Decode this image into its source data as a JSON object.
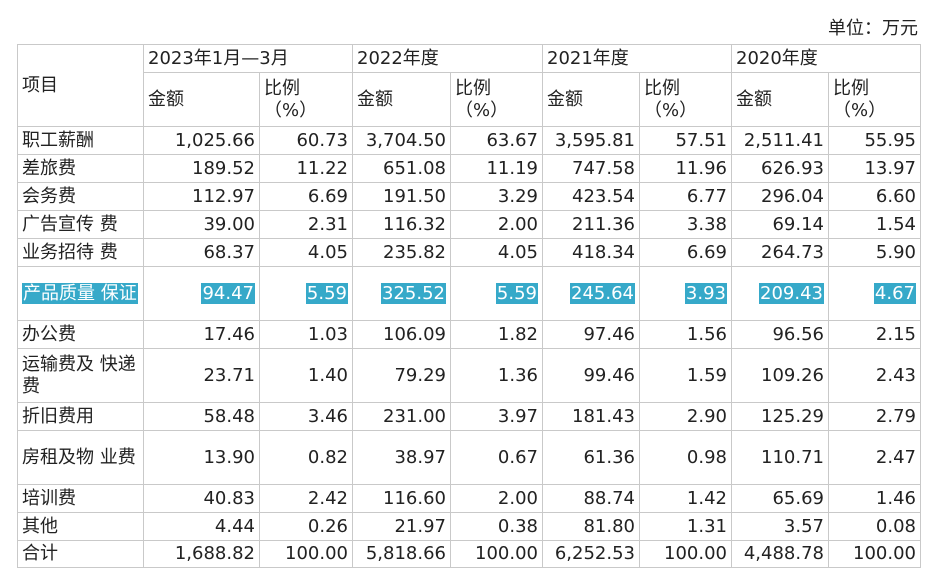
{
  "unit_label": "单位：万元",
  "headers": {
    "item": "项目",
    "periods": [
      "2023年1月—3月",
      "2022年度",
      "2021年度",
      "2020年度"
    ],
    "amount": "金额",
    "ratio_line1": "比例",
    "ratio_line2": "（%）"
  },
  "rows": [
    {
      "name": "职工薪酬",
      "values": [
        "1,025.66",
        "60.73",
        "3,704.50",
        "63.67",
        "3,595.81",
        "57.51",
        "2,511.41",
        "55.95"
      ]
    },
    {
      "name": "差旅费",
      "values": [
        "189.52",
        "11.22",
        "651.08",
        "11.19",
        "747.58",
        "11.96",
        "626.93",
        "13.97"
      ]
    },
    {
      "name": "会务费",
      "values": [
        "112.97",
        "6.69",
        "191.50",
        "3.29",
        "423.54",
        "6.77",
        "296.04",
        "6.60"
      ]
    },
    {
      "name": "广告宣传 费",
      "values": [
        "39.00",
        "2.31",
        "116.32",
        "2.00",
        "211.36",
        "3.38",
        "69.14",
        "1.54"
      ]
    },
    {
      "name": "业务招待 费",
      "values": [
        "68.37",
        "4.05",
        "235.82",
        "4.05",
        "418.34",
        "6.69",
        "264.73",
        "5.90"
      ]
    },
    {
      "name": "产品质量 保证",
      "values": [
        "94.47",
        "5.59",
        "325.52",
        "5.59",
        "245.64",
        "3.93",
        "209.43",
        "4.67"
      ],
      "highlight": true
    },
    {
      "name": "办公费",
      "values": [
        "17.46",
        "1.03",
        "106.09",
        "1.82",
        "97.46",
        "1.56",
        "96.56",
        "2.15"
      ]
    },
    {
      "name": "运输费及 快递费",
      "values": [
        "23.71",
        "1.40",
        "79.29",
        "1.36",
        "99.46",
        "1.59",
        "109.26",
        "2.43"
      ]
    },
    {
      "name": "折旧费用",
      "values": [
        "58.48",
        "3.46",
        "231.00",
        "3.97",
        "181.43",
        "2.90",
        "125.29",
        "2.79"
      ]
    },
    {
      "name": "房租及物 业费",
      "values": [
        "13.90",
        "0.82",
        "38.97",
        "0.67",
        "61.36",
        "0.98",
        "110.71",
        "2.47"
      ]
    },
    {
      "name": "培训费",
      "values": [
        "40.83",
        "2.42",
        "116.60",
        "2.00",
        "88.74",
        "1.42",
        "65.69",
        "1.46"
      ]
    },
    {
      "name": "其他",
      "values": [
        "4.44",
        "0.26",
        "21.97",
        "0.38",
        "81.80",
        "1.31",
        "3.57",
        "0.08"
      ]
    },
    {
      "name": "合计",
      "values": [
        "1,688.82",
        "100.00",
        "5,818.66",
        "100.00",
        "6,252.53",
        "100.00",
        "4,488.78",
        "100.00"
      ]
    }
  ],
  "highlight_color": "#36a9c9"
}
